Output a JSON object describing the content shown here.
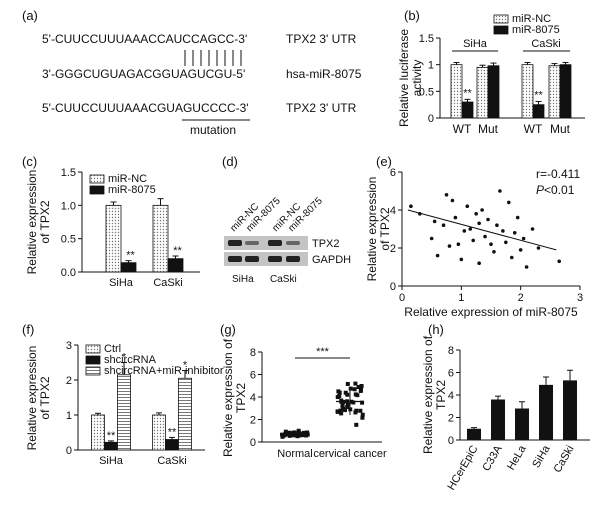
{
  "panel_labels": [
    "(a)",
    "(b)",
    "(c)",
    "(d)",
    "(e)",
    "(f)",
    "(g)",
    "(h)"
  ],
  "panel_a": {
    "seq_wt": "5'-CUUCCUUUAAACCAUCCAGCC-3'",
    "seq_wt_label": "TPX2 3' UTR",
    "seq_mir": "3'-GGGCUGUAGACGGUAGUCGU-5'",
    "seq_mir_label": "hsa-miR-8075",
    "seq_mut": "5'-CUUCCUUUAAACGUAGUCCCC-3'",
    "seq_mut_label": "TPX2 3' UTR",
    "mutation_label": "mutation"
  },
  "chart_data": [
    {
      "panel": "(b)",
      "type": "bar",
      "groups": [
        "SiHa",
        "CaSki"
      ],
      "categories": [
        "WT",
        "Mut",
        "WT",
        "Mut"
      ],
      "ylabel": "Relative luciferase activity",
      "ylim": [
        0,
        1.5
      ],
      "yticks": [
        "0",
        "0.5",
        "1",
        "1.5"
      ],
      "legend": "top-right",
      "series": [
        {
          "name": "miR-NC",
          "values": [
            1.0,
            0.95,
            1.0,
            0.98
          ],
          "errors": [
            0.04,
            0.04,
            0.04,
            0.04
          ],
          "color": "#ffffff",
          "pattern": "dots"
        },
        {
          "name": "miR-8075",
          "values": [
            0.3,
            0.98,
            0.25,
            1.0
          ],
          "errors": [
            0.05,
            0.05,
            0.06,
            0.04
          ],
          "color": "#111111"
        }
      ],
      "annotations": [
        "**",
        "**"
      ]
    },
    {
      "panel": "(c)",
      "type": "bar",
      "categories": [
        "SiHa",
        "CaSki"
      ],
      "ylabel": "Relative expression of TPX2",
      "ylim": [
        0,
        1.5
      ],
      "yticks": [
        "0.0",
        "0.5",
        "1.0",
        "1.5"
      ],
      "legend": "top-left",
      "series": [
        {
          "name": "miR-NC",
          "values": [
            1.0,
            1.0
          ],
          "errors": [
            0.05,
            0.1
          ],
          "color": "#ffffff",
          "pattern": "dots"
        },
        {
          "name": "miR-8075",
          "values": [
            0.14,
            0.2
          ],
          "errors": [
            0.03,
            0.04
          ],
          "color": "#111111"
        }
      ],
      "annotations": [
        "**",
        "**"
      ]
    },
    {
      "panel": "(e)",
      "type": "scatter",
      "xlabel": "Relative expression of miR-8075",
      "ylabel": "Relative expression of TPX2",
      "xlim": [
        0,
        3
      ],
      "ylim": [
        0,
        6
      ],
      "xticks": [
        "0",
        "1",
        "2",
        "3"
      ],
      "yticks": [
        "0",
        "2",
        "4",
        "6"
      ],
      "annotations": [
        "r=-0.411",
        "P<0.01"
      ],
      "points": [
        [
          0.15,
          4.2
        ],
        [
          0.3,
          3.8
        ],
        [
          0.5,
          2.5
        ],
        [
          0.55,
          3.4
        ],
        [
          0.6,
          1.6
        ],
        [
          0.7,
          3.2
        ],
        [
          0.75,
          4.8
        ],
        [
          0.8,
          2.1
        ],
        [
          0.85,
          4.5
        ],
        [
          0.9,
          3.6
        ],
        [
          1.0,
          1.4
        ],
        [
          1.05,
          2.9
        ],
        [
          1.1,
          4.2
        ],
        [
          1.15,
          3.0
        ],
        [
          1.2,
          2.4
        ],
        [
          1.25,
          3.8
        ],
        [
          1.3,
          1.2
        ],
        [
          1.35,
          4.0
        ],
        [
          1.4,
          2.6
        ],
        [
          1.45,
          3.5
        ],
        [
          1.5,
          2.2
        ],
        [
          1.55,
          1.8
        ],
        [
          1.6,
          3.2
        ],
        [
          1.65,
          5.0
        ],
        [
          1.7,
          2.9
        ],
        [
          1.75,
          2.3
        ],
        [
          1.8,
          4.4
        ],
        [
          1.85,
          1.5
        ],
        [
          1.9,
          2.8
        ],
        [
          1.95,
          3.6
        ],
        [
          2.0,
          1.9
        ],
        [
          2.05,
          2.5
        ],
        [
          2.1,
          1.0
        ],
        [
          2.2,
          3.0
        ],
        [
          2.3,
          2.0
        ],
        [
          2.65,
          1.3
        ],
        [
          0.95,
          2.2
        ],
        [
          1.3,
          3.3
        ]
      ],
      "trend": {
        "x": [
          0.1,
          2.6
        ],
        "y": [
          4.0,
          1.9
        ]
      }
    },
    {
      "panel": "(f)",
      "type": "bar",
      "categories": [
        "SiHa",
        "CaSki"
      ],
      "ylabel": "Relative expression of TPX2",
      "ylim": [
        0,
        3
      ],
      "yticks": [
        "0",
        "1",
        "2",
        "3"
      ],
      "legend": "top-left",
      "series": [
        {
          "name": "Ctrl",
          "values": [
            1.0,
            1.0
          ],
          "errors": [
            0.05,
            0.06
          ],
          "color": "#ffffff",
          "pattern": "dots"
        },
        {
          "name": "shcircRNA",
          "values": [
            0.22,
            0.3
          ],
          "errors": [
            0.04,
            0.06
          ],
          "color": "#111111"
        },
        {
          "name": "shcircRNA+miR inhibitor",
          "values": [
            2.15,
            2.05
          ],
          "errors": [
            0.35,
            0.22
          ],
          "color": "#ffffff",
          "pattern": "hlines"
        }
      ],
      "annotations": [
        "**",
        "*",
        "**",
        "*"
      ]
    },
    {
      "panel": "(g)",
      "type": "scatter",
      "categories": [
        "Normal",
        "cervical cancer"
      ],
      "ylabel": "Relative expression of TPX2",
      "ylim": [
        0,
        8
      ],
      "yticks": [
        "0",
        "2",
        "4",
        "6",
        "8"
      ],
      "annotations": [
        "***"
      ],
      "series": [
        {
          "name": "Normal",
          "mean": 0.75,
          "sd": 0.15
        },
        {
          "name": "cervical cancer",
          "mean": 3.6,
          "sd": 1.2
        }
      ]
    },
    {
      "panel": "(h)",
      "type": "bar",
      "categories": [
        "HCerEpiC",
        "C33A",
        "HeLa",
        "SiHa",
        "CaSki"
      ],
      "ylabel": "Relative expression of TPX2",
      "ylim": [
        0,
        8
      ],
      "yticks": [
        "0",
        "2",
        "4",
        "6",
        "8"
      ],
      "values": [
        1.0,
        3.6,
        2.8,
        4.9,
        5.3
      ],
      "errors": [
        0.1,
        0.3,
        0.6,
        0.7,
        0.9
      ],
      "color": "#111111"
    }
  ],
  "panel_d": {
    "lane_labels": [
      "miR-NC",
      "miR-8075",
      "miR-NC",
      "miR-8075"
    ],
    "bands": [
      "TPX2",
      "GAPDH"
    ],
    "cell_lines": [
      "SiHa",
      "CaSki"
    ]
  }
}
